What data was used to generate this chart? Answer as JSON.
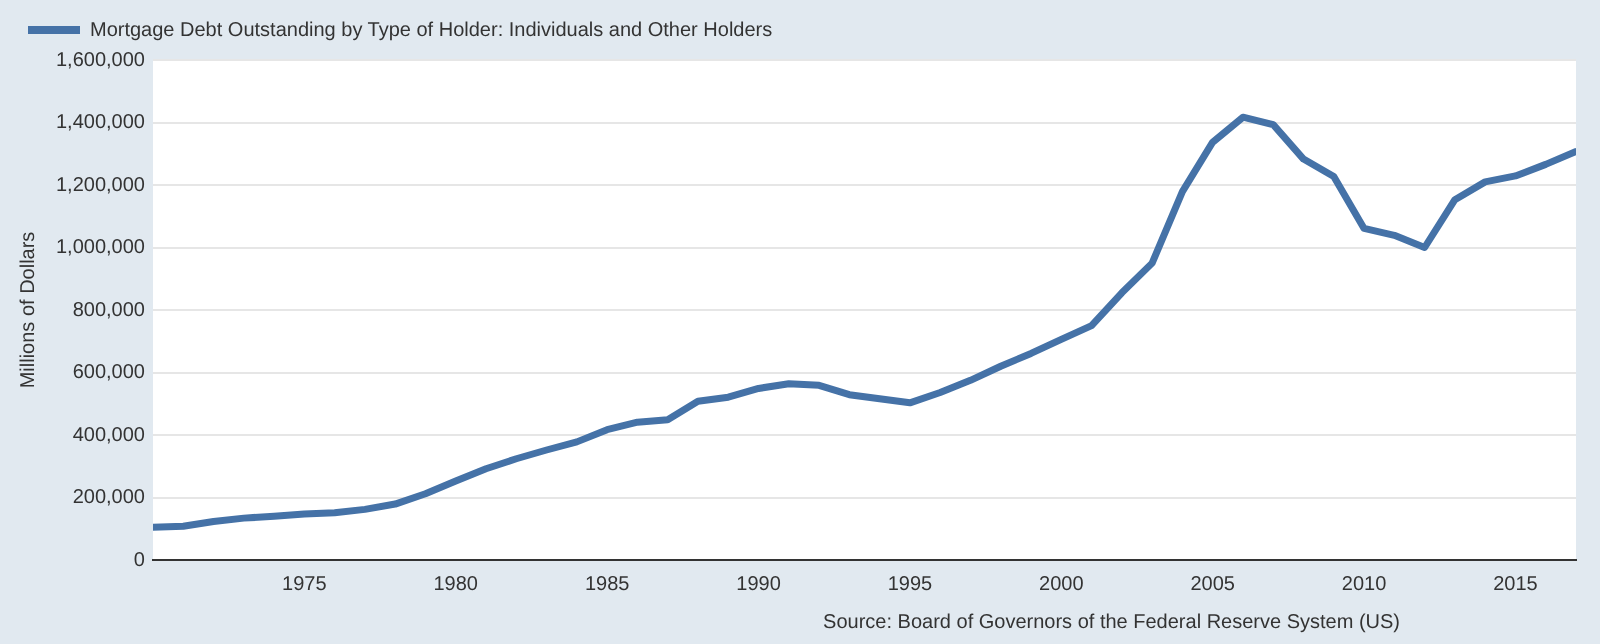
{
  "chart_data": {
    "type": "line",
    "ylabel": "Millions of Dollars",
    "annotations": [
      "Source: Board of Governors of the Federal Reserve System (US)"
    ],
    "x": [
      1970,
      1971,
      1972,
      1973,
      1974,
      1975,
      1976,
      1977,
      1978,
      1979,
      1980,
      1981,
      1982,
      1983,
      1984,
      1985,
      1986,
      1987,
      1988,
      1989,
      1990,
      1991,
      1992,
      1993,
      1994,
      1995,
      1996,
      1997,
      1998,
      1999,
      2000,
      2001,
      2002,
      2003,
      2004,
      2005,
      2006,
      2007,
      2008,
      2009,
      2010,
      2011,
      2012,
      2013,
      2014,
      2015,
      2016,
      2017
    ],
    "series": [
      {
        "name": "Mortgage Debt Outstanding by Type of Holder: Individuals and Other Holders",
        "color": "#4572a7",
        "values": [
          105000,
          108000,
          123000,
          134000,
          140000,
          147000,
          151000,
          162000,
          179000,
          212000,
          253000,
          292000,
          324000,
          352000,
          378000,
          417000,
          441000,
          449000,
          508000,
          521000,
          549000,
          564000,
          559000,
          529000,
          516000,
          503000,
          536000,
          575000,
          620000,
          661000,
          706000,
          750000,
          855000,
          950000,
          1179000,
          1337000,
          1417000,
          1393000,
          1283000,
          1227000,
          1061000,
          1039000,
          1000000,
          1153000,
          1210000,
          1229000,
          1266000,
          1307000
        ]
      }
    ],
    "xlim": [
      1970,
      2017
    ],
    "xticks": [
      1975,
      1980,
      1985,
      1990,
      1995,
      2000,
      2005,
      2010,
      2015
    ],
    "ylim": [
      0,
      1600000
    ],
    "yticks": [
      0,
      {
        "value": 200000,
        "label": "200,000"
      },
      {
        "value": 400000,
        "label": "400,000"
      },
      {
        "value": 600000,
        "label": "600,000"
      },
      {
        "value": 800000,
        "label": "800,000"
      },
      {
        "value": 1000000,
        "label": "1,000,000"
      },
      {
        "value": 1200000,
        "label": "1,200,000"
      },
      {
        "value": 1400000,
        "label": "1,400,000"
      },
      {
        "value": 1600000,
        "label": "1,600,000"
      }
    ],
    "grid": "y",
    "legend": "top left",
    "marker": "none",
    "line_style": "solid"
  }
}
